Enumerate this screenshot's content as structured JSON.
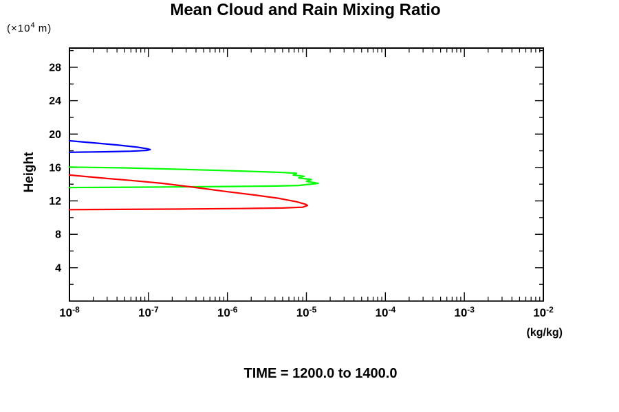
{
  "title": "Mean Cloud and Rain Mixing Ratio",
  "y_axis_unit": {
    "prefix": "(×10",
    "exponent": "4",
    "suffix": " m)"
  },
  "y_axis_title": "Height",
  "x_axis_unit": "(kg/kg)",
  "footer": "TIME = 1200.0 to 1400.0",
  "chart_data": {
    "type": "line",
    "title": "Mean Cloud and Rain Mixing Ratio",
    "xlabel": "(kg/kg)",
    "ylabel": "Height",
    "ylabel_unit": "(×10^4 m)",
    "annotation": "TIME = 1200.0 to 1400.0",
    "x_scale": "log",
    "xlim": [
      1e-08,
      0.01
    ],
    "ylim": [
      0,
      30.3
    ],
    "x_tick_exponents": [
      -8,
      -7,
      -6,
      -5,
      -4,
      -3,
      -2
    ],
    "y_major_ticks": [
      4,
      8,
      12,
      16,
      20,
      24,
      28
    ],
    "y_minor_tick_step": 2,
    "grid": false,
    "legend": "none",
    "frame_color": "#000000",
    "series": [
      {
        "name": "blue-profile",
        "color": "#0000ff",
        "points": [
          [
            1e-08,
            19.2
          ],
          [
            2e-08,
            18.95
          ],
          [
            4e-08,
            18.7
          ],
          [
            7e-08,
            18.45
          ],
          [
            9.5e-08,
            18.25
          ],
          [
            1.05e-07,
            18.15
          ],
          [
            9.5e-08,
            18.05
          ],
          [
            6e-08,
            17.95
          ],
          [
            3e-08,
            17.88
          ],
          [
            1e-08,
            17.82
          ]
        ]
      },
      {
        "name": "green-profile",
        "color": "#00ff00",
        "points": [
          [
            1e-08,
            16.05
          ],
          [
            5e-08,
            15.95
          ],
          [
            2e-07,
            15.8
          ],
          [
            8e-07,
            15.65
          ],
          [
            2.5e-06,
            15.5
          ],
          [
            5e-06,
            15.4
          ],
          [
            7.5e-06,
            15.3
          ],
          [
            6.8e-06,
            15.1
          ],
          [
            9.3e-06,
            14.95
          ],
          [
            8e-06,
            14.75
          ],
          [
            1.15e-05,
            14.55
          ],
          [
            1e-05,
            14.35
          ],
          [
            1.4e-05,
            14.1
          ],
          [
            8e-06,
            13.85
          ],
          [
            4e-06,
            13.78
          ],
          [
            1e-06,
            13.72
          ],
          [
            1e-07,
            13.65
          ],
          [
            1e-08,
            13.6
          ]
        ]
      },
      {
        "name": "red-profile",
        "color": "#ff0000",
        "points": [
          [
            1e-08,
            15.1
          ],
          [
            2.5e-08,
            14.75
          ],
          [
            6e-08,
            14.45
          ],
          [
            1.5e-07,
            14.1
          ],
          [
            4e-07,
            13.6
          ],
          [
            1e-06,
            13.1
          ],
          [
            2.2e-06,
            12.7
          ],
          [
            4.5e-06,
            12.3
          ],
          [
            7.5e-06,
            11.9
          ],
          [
            9.7e-06,
            11.6
          ],
          [
            1.03e-05,
            11.45
          ],
          [
            9e-06,
            11.25
          ],
          [
            5e-06,
            11.15
          ],
          [
            1.5e-06,
            11.08
          ],
          [
            2e-07,
            11.02
          ],
          [
            1e-08,
            10.95
          ]
        ]
      }
    ]
  }
}
